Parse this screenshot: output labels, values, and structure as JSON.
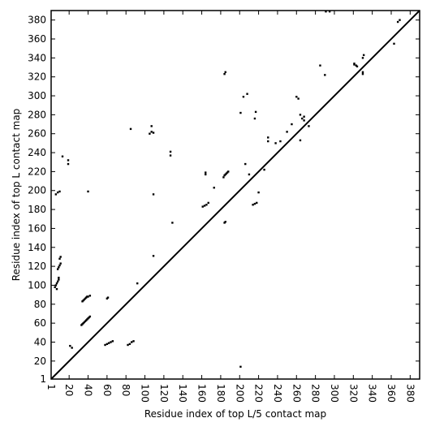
{
  "chart_data": {
    "type": "scatter",
    "x_label": "Residue index of top L/5 contact map",
    "y_label": "Residue index of top L contact map",
    "xlim": [
      1,
      390
    ],
    "ylim": [
      1,
      390
    ],
    "xticks": [
      1,
      20,
      40,
      60,
      80,
      100,
      120,
      140,
      160,
      180,
      200,
      220,
      240,
      260,
      280,
      300,
      320,
      340,
      360,
      380
    ],
    "yticks": [
      1,
      20,
      40,
      60,
      80,
      100,
      120,
      140,
      160,
      180,
      200,
      220,
      240,
      260,
      280,
      300,
      320,
      340,
      360,
      380
    ],
    "color": "#000000",
    "x": [
      21,
      23,
      33,
      34,
      35,
      36,
      37,
      38,
      39,
      40,
      41,
      42,
      34,
      35,
      36,
      37,
      38,
      39,
      40,
      42,
      58,
      60,
      62,
      64,
      66,
      60,
      61,
      82,
      84,
      86,
      88,
      92,
      109,
      129,
      161,
      163,
      165,
      167,
      183,
      184,
      185,
      186,
      187,
      188,
      184,
      185,
      214,
      216,
      218,
      230,
      230,
      273,
      321,
      323,
      324,
      330,
      330,
      290,
      363,
      201,
      206,
      210,
      220,
      226,
      238,
      250,
      264,
      268,
      268,
      255,
      5,
      6,
      7,
      8,
      9,
      7,
      8,
      9,
      10,
      11,
      10,
      11,
      9,
      6,
      8,
      10,
      13,
      19,
      19,
      40,
      85,
      105,
      107,
      109,
      109,
      127,
      127,
      107,
      164,
      164,
      173,
      184,
      185,
      201,
      204,
      208,
      216,
      217,
      260,
      262,
      264,
      266,
      291,
      295,
      321,
      330,
      331,
      367,
      369,
      285,
      243
    ],
    "y": [
      36,
      34,
      58,
      59,
      60,
      61,
      62,
      63,
      64,
      65,
      66,
      67,
      83,
      84,
      85,
      86,
      87,
      88,
      88,
      89,
      37,
      38,
      39,
      40,
      41,
      86,
      87,
      37,
      38,
      40,
      41,
      102,
      131,
      166,
      183,
      184,
      185,
      187,
      214,
      216,
      217,
      218,
      219,
      220,
      166,
      167,
      185,
      186,
      187,
      252,
      256,
      268,
      333,
      332,
      331,
      323,
      325,
      322,
      355,
      14,
      228,
      217,
      198,
      222,
      250,
      262,
      253,
      278,
      274,
      270,
      98,
      100,
      102,
      104,
      106,
      96,
      117,
      119,
      121,
      123,
      128,
      130,
      108,
      196,
      198,
      199,
      236,
      228,
      232,
      199,
      265,
      260,
      262,
      261,
      196,
      237,
      241,
      268,
      217,
      219,
      203,
      323,
      325,
      282,
      299,
      302,
      276,
      283,
      299,
      297,
      280,
      276,
      389,
      389,
      334,
      340,
      343,
      378,
      380,
      332,
      252
    ]
  }
}
